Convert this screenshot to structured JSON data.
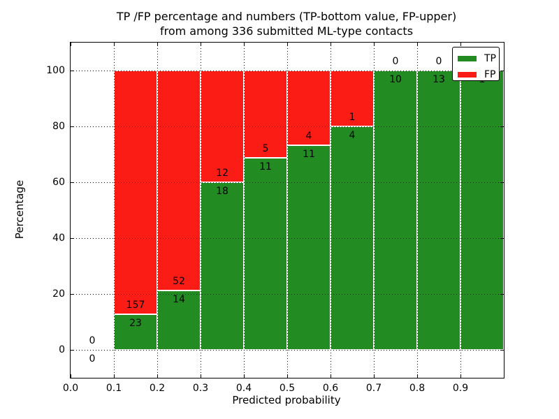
{
  "title": {
    "line1": "TP /FP percentage and numbers (TP-bottom value, FP-upper)",
    "line2": "from among 336 submitted ML-type contacts"
  },
  "axes": {
    "xlabel": "Predicted probability",
    "ylabel": "Percentage",
    "x_ticks": [
      "0.0",
      "0.1",
      "0.2",
      "0.3",
      "0.4",
      "0.5",
      "0.6",
      "0.7",
      "0.8",
      "0.9"
    ],
    "y_ticks": [
      "0",
      "20",
      "40",
      "60",
      "80",
      "100"
    ]
  },
  "legend": {
    "items": [
      {
        "label": "TP",
        "color": "#228b22"
      },
      {
        "label": "FP",
        "color": "#fb1c15"
      }
    ]
  },
  "chart_data": {
    "type": "bar",
    "stacked": true,
    "title": "TP /FP percentage and numbers (TP-bottom value, FP-upper) from among 336 submitted ML-type contacts",
    "xlabel": "Predicted probability",
    "ylabel": "Percentage",
    "total_contacts": 336,
    "bin_starts": [
      0.0,
      0.1,
      0.2,
      0.3,
      0.4,
      0.5,
      0.6,
      0.7,
      0.8,
      0.9
    ],
    "bin_width": 0.1,
    "series": [
      {
        "name": "TP",
        "color": "#228b22",
        "counts": [
          0,
          23,
          14,
          18,
          11,
          11,
          4,
          10,
          13,
          1
        ]
      },
      {
        "name": "FP",
        "color": "#fb1c15",
        "counts": [
          0,
          157,
          52,
          12,
          5,
          4,
          1,
          0,
          0,
          0
        ]
      }
    ],
    "tp_percent_of_bin": [
      0,
      12.8,
      21.2,
      60.0,
      68.8,
      73.3,
      80.0,
      100.0,
      100.0,
      100.0
    ],
    "bar_value_labels": "FP count above TP/FP boundary, TP count below boundary",
    "xlim": [
      0,
      1
    ],
    "ylim": [
      -10,
      110
    ],
    "grid": "dotted",
    "legend_position": "upper right"
  }
}
